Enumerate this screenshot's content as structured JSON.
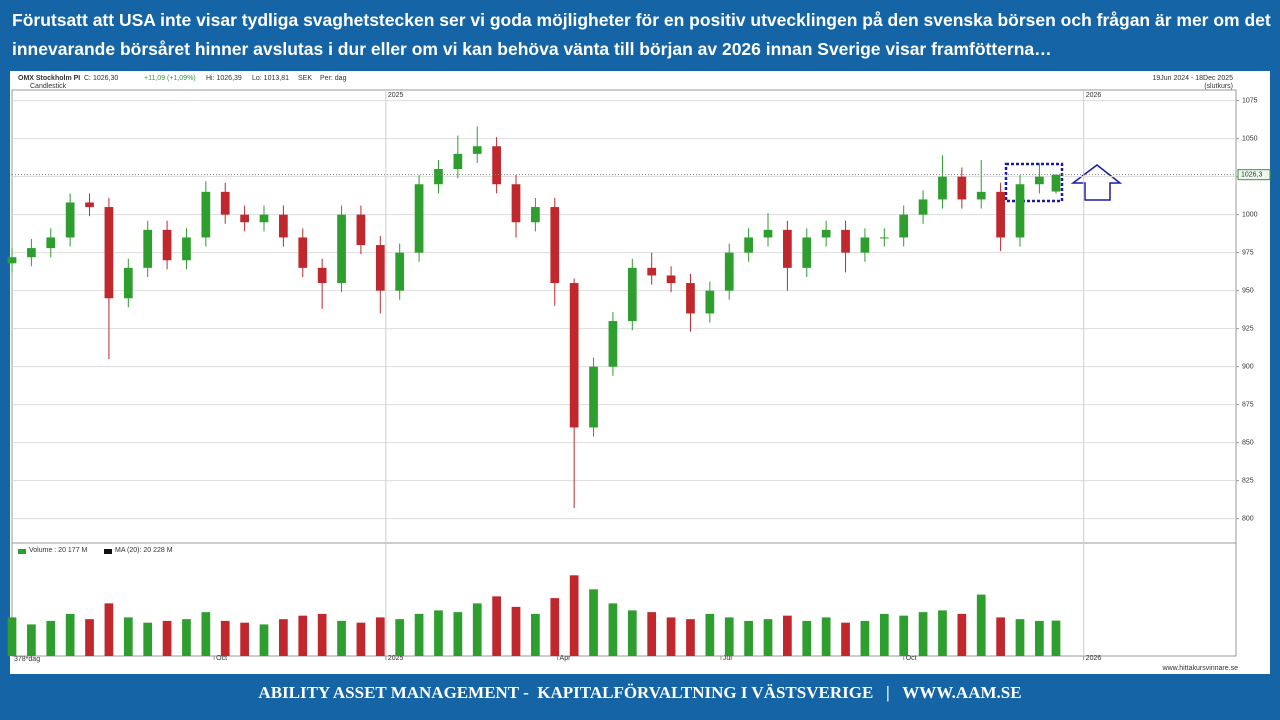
{
  "header": {
    "title": "Förutsatt att USA inte visar tydliga svaghetstecken ser vi goda möjligheter för en positiv utvecklingen på den svenska börsen och frågan är mer om det innevarande börsåret hinner avslutas i dur eller om vi kan behöva vänta till början av 2026 innan Sverige visar framfötterna…"
  },
  "footer": {
    "text": "ABILITY ASSET MANAGEMENT -  KAPITALFÖRVALTNING I VÄSTSVERIGE   |   WWW.AAM.SE"
  },
  "chart_data": {
    "type": "candlestick",
    "title": "OMX Stockholm PI",
    "info": {
      "close": "C: 1026,30",
      "change": "+11,09 (+1,09%)",
      "high": "Hi: 1026,39",
      "low": "Lo: 1013,81",
      "currency": "SEK",
      "period": "Per: dag",
      "style": "Candlestick",
      "range": "19Jun 2024 - 18Dec 2025",
      "range_note": "(slutkurs)"
    },
    "last_label": "1026,3",
    "up_color": "#2e9e2e",
    "down_color": "#c0282d",
    "x": [
      0,
      7,
      14,
      21,
      28,
      35,
      42,
      49,
      56,
      63,
      70,
      77,
      84,
      91,
      98,
      105,
      112,
      119,
      126,
      133,
      140,
      147,
      154,
      161,
      168,
      175,
      182,
      189,
      196,
      203,
      210,
      217,
      224,
      231,
      238,
      245,
      252,
      259,
      266,
      273,
      280,
      287,
      294,
      301,
      308,
      315,
      322,
      329,
      336,
      343,
      350,
      357,
      364,
      371,
      377
    ],
    "open": [
      968,
      972,
      978,
      985,
      1008,
      1005,
      945,
      965,
      990,
      970,
      985,
      1015,
      1000,
      995,
      1000,
      985,
      965,
      955,
      1000,
      980,
      950,
      975,
      1020,
      1030,
      1040,
      1045,
      1020,
      995,
      1005,
      955,
      860,
      900,
      930,
      965,
      960,
      955,
      935,
      950,
      975,
      985,
      990,
      965,
      985,
      990,
      975,
      985,
      985,
      1000,
      1010,
      1025,
      1010,
      1015,
      985,
      1020,
      1015.2
    ],
    "high": [
      978,
      984,
      991,
      1014,
      1014,
      1011,
      971,
      996,
      996,
      991,
      1022,
      1021,
      1006,
      1006,
      1006,
      991,
      971,
      1006,
      1006,
      986,
      981,
      1026,
      1036,
      1052,
      1058,
      1051,
      1026,
      1011,
      1011,
      958,
      906,
      936,
      971,
      975,
      966,
      961,
      956,
      981,
      991,
      1001,
      996,
      991,
      996,
      996,
      991,
      991,
      1006,
      1016,
      1039,
      1031,
      1036,
      1021,
      1026,
      1034,
      1026.39
    ],
    "low": [
      962,
      966,
      972,
      979,
      999,
      905,
      939,
      959,
      964,
      964,
      979,
      994,
      989,
      989,
      979,
      959,
      938,
      949,
      974,
      935,
      944,
      969,
      1014,
      1024,
      1034,
      1014,
      985,
      989,
      940,
      807,
      854,
      894,
      924,
      954,
      949,
      923,
      929,
      944,
      969,
      979,
      950,
      959,
      979,
      962,
      969,
      979,
      979,
      994,
      1004,
      1004,
      1004,
      976,
      979,
      1014,
      1013.81
    ],
    "close": [
      972,
      978,
      985,
      1008,
      1005,
      945,
      965,
      990,
      970,
      985,
      1015,
      1000,
      995,
      1000,
      985,
      965,
      955,
      1000,
      980,
      950,
      975,
      1020,
      1030,
      1040,
      1045,
      1020,
      995,
      1005,
      955,
      860,
      900,
      930,
      965,
      960,
      955,
      935,
      950,
      975,
      985,
      990,
      965,
      985,
      990,
      975,
      985,
      985,
      1000,
      1010,
      1025,
      1010,
      1015,
      985,
      1020,
      1025,
      1026.3
    ],
    "xlim": [
      0,
      442
    ],
    "ylim": [
      784,
      1082
    ],
    "yticks": [
      800,
      825,
      850,
      875,
      900,
      925,
      950,
      975,
      1000,
      1025,
      1050,
      1075
    ],
    "xticks": [
      {
        "value": 73,
        "label": "Oct"
      },
      {
        "value": 135,
        "label": "2025"
      },
      {
        "value": 197,
        "label": "Apr"
      },
      {
        "value": 256,
        "label": "Jul"
      },
      {
        "value": 322,
        "label": "Oct"
      },
      {
        "value": 387,
        "label": "2026"
      }
    ],
    "top_labels": [
      {
        "value": 135,
        "label": "2025"
      },
      {
        "value": 387,
        "label": "2026"
      }
    ],
    "volume": {
      "label": "Volume : 20 177 M",
      "ma_label": "MA (20): 20 228 M",
      "count_label": "378*dag",
      "ylim": [
        0,
        57000
      ],
      "values": [
        22000,
        18000,
        20000,
        24000,
        21000,
        30000,
        22000,
        19000,
        20000,
        21000,
        25000,
        20000,
        19000,
        18000,
        21000,
        23000,
        24000,
        20000,
        19000,
        22000,
        21000,
        24000,
        26000,
        25000,
        30000,
        34000,
        28000,
        24000,
        33000,
        46000,
        38000,
        30000,
        26000,
        25000,
        22000,
        21000,
        24000,
        22000,
        20000,
        21000,
        23000,
        20000,
        22000,
        19000,
        20000,
        24000,
        23000,
        25000,
        26000,
        24000,
        35000,
        22000,
        21000,
        20000,
        20177
      ]
    },
    "source": "www.hittakursvinnare.se",
    "grid": true
  }
}
